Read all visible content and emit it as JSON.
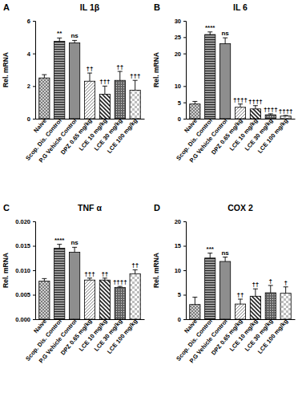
{
  "chart_data": [
    {
      "type": "bar",
      "panel_label": "A",
      "title": "IL 1β",
      "y_label": "Rel. mRNA",
      "categories": [
        "Naive",
        "Scop. Dis. Control",
        "P.G Vehicle Control",
        "DPZ 0.65 mg/kg",
        "LCE 10 mg/kg",
        "LCE 30 mg/kg",
        "LCE 100 mg/kg"
      ],
      "values": [
        2.5,
        4.75,
        4.65,
        2.3,
        1.5,
        2.35,
        1.75
      ],
      "errors": [
        0.2,
        0.2,
        0.15,
        0.5,
        0.5,
        0.55,
        0.6
      ],
      "annotations": [
        null,
        "**",
        "ns",
        "††",
        "†††",
        "††",
        "†††"
      ],
      "ylim": [
        0,
        6
      ],
      "yticks": [
        0,
        2,
        4,
        6
      ]
    },
    {
      "type": "bar",
      "panel_label": "B",
      "title": "IL 6",
      "y_label": "Rel. mRNA",
      "categories": [
        "Naive",
        "Scop. Dis. Control",
        "P.G Vehicle Control",
        "DPZ 0.65 mg/kg",
        "LCE 10 mg/kg",
        "LCE 30 mg/kg",
        "LCE 100 mg/kg"
      ],
      "values": [
        4.5,
        25.8,
        23,
        3.5,
        3,
        1.2,
        0.8
      ],
      "errors": [
        0.8,
        0.8,
        1.8,
        1,
        1,
        0.3,
        0.2
      ],
      "annotations": [
        null,
        "****",
        "ns",
        "††††",
        "††††",
        "††††",
        "††††"
      ],
      "ylim": [
        0,
        30
      ],
      "yticks": [
        0,
        5,
        10,
        20,
        25,
        30
      ]
    },
    {
      "type": "bar",
      "panel_label": "C",
      "title": "TNF α",
      "y_label": "Rel. mRNA",
      "categories": [
        "Naive",
        "Scop. Dis. Control",
        "P.G Vehicle Control",
        "DPZ 0.65 mg/kg",
        "LCE 10 mg/kg",
        "LCE 30 mg/kg",
        "LCE 100 mg/kg"
      ],
      "values": [
        0.0078,
        0.0145,
        0.0137,
        0.008,
        0.008,
        0.0065,
        0.0093
      ],
      "errors": [
        0.0005,
        0.0008,
        0.001,
        0.0004,
        0.0004,
        0.0002,
        0.0008
      ],
      "annotations": [
        null,
        "****",
        "ns",
        "†††",
        "††",
        "††††",
        "††"
      ],
      "ylim": [
        0,
        0.02
      ],
      "yticks": [
        {
          "value": 0,
          "label": "0.000"
        },
        {
          "value": 0.005,
          "label": "0.005"
        },
        {
          "value": 0.01,
          "label": "0.010"
        },
        {
          "value": 0.015,
          "label": "0.015"
        },
        {
          "value": 0.02,
          "label": "0.020"
        }
      ]
    },
    {
      "type": "bar",
      "panel_label": "D",
      "title": "COX 2",
      "y_label": "Rel. mRNA",
      "categories": [
        "Naive",
        "Scop. Dis. Control",
        "P.G Vehicle Control",
        "DPZ 0.65 mg/kg",
        "LCE 10 mg/kg",
        "LCE 30 mg/kg",
        "LCE 100 mg/kg"
      ],
      "values": [
        3,
        12.5,
        11.8,
        3.1,
        4.7,
        5.4,
        5.3
      ],
      "errors": [
        1.5,
        1,
        0.9,
        1,
        1.5,
        1.5,
        1.3
      ],
      "annotations": [
        null,
        "***",
        "ns",
        "††",
        "††",
        "†",
        "†"
      ],
      "ylim": [
        0,
        20
      ],
      "yticks": [
        0,
        5,
        10,
        15,
        20
      ]
    }
  ]
}
